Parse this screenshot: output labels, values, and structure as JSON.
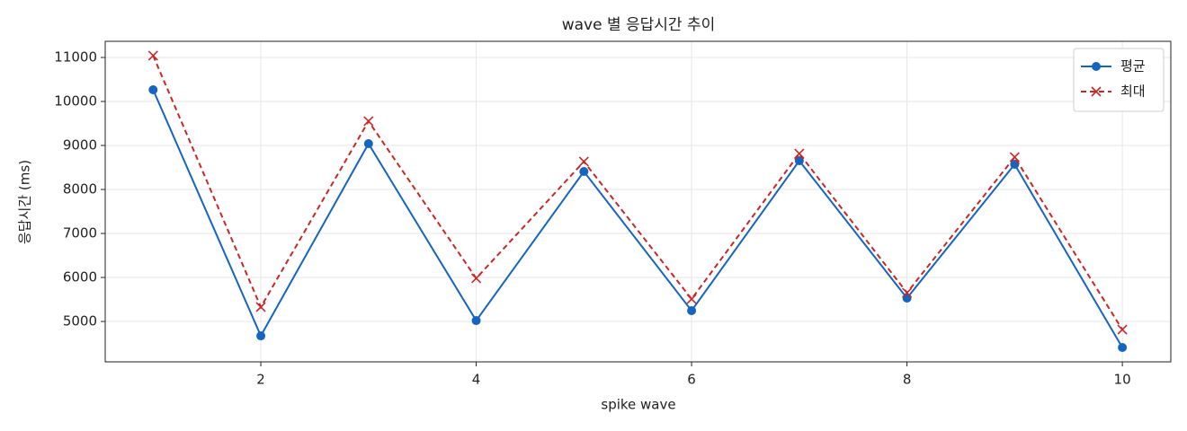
{
  "chart_data": {
    "type": "line",
    "title": "wave 별 응답시간 추이",
    "x_label": "spike wave",
    "y_label": "응답시간 (ms)",
    "x": [
      1,
      2,
      3,
      4,
      5,
      6,
      7,
      8,
      9,
      10
    ],
    "series": [
      {
        "name": "평균",
        "color": "#1565c0",
        "marker": "circle",
        "linestyle": "solid",
        "values": [
          10265,
          4673,
          9041,
          5020,
          8408,
          5245,
          8653,
          5531,
          8571,
          4408
        ]
      },
      {
        "name": "최대",
        "color": "#c62828",
        "marker": "x",
        "linestyle": "dashed",
        "values": [
          11041,
          5327,
          9551,
          5980,
          8633,
          5510,
          8816,
          5653,
          8735,
          4816
        ]
      }
    ],
    "xlim": [
      0.555,
      10.45
    ],
    "xticks": [
      2,
      4,
      6,
      8,
      10
    ],
    "ylim": [
      4082,
      11367
    ],
    "yticks": [
      5000,
      6000,
      7000,
      8000,
      9000,
      10000,
      11000
    ],
    "grid": true,
    "legend": "upper right"
  }
}
